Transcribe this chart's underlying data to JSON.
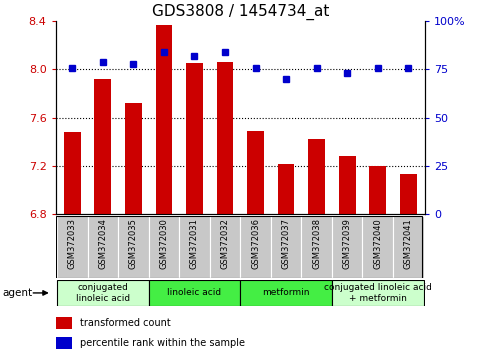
{
  "title": "GDS3808 / 1454734_at",
  "samples": [
    "GSM372033",
    "GSM372034",
    "GSM372035",
    "GSM372030",
    "GSM372031",
    "GSM372032",
    "GSM372036",
    "GSM372037",
    "GSM372038",
    "GSM372039",
    "GSM372040",
    "GSM372041"
  ],
  "transformed_count": [
    7.48,
    7.92,
    7.72,
    8.37,
    8.05,
    8.06,
    7.49,
    7.22,
    7.42,
    7.28,
    7.2,
    7.13
  ],
  "percentile_rank": [
    76,
    79,
    78,
    84,
    82,
    84,
    76,
    70,
    76,
    73,
    76,
    76
  ],
  "ylim_left": [
    6.8,
    8.4
  ],
  "ylim_right": [
    0,
    100
  ],
  "yticks_left": [
    6.8,
    7.2,
    7.6,
    8.0,
    8.4
  ],
  "yticks_right": [
    0,
    25,
    50,
    75,
    100
  ],
  "ytick_labels_right": [
    "0",
    "25",
    "50",
    "75",
    "100%"
  ],
  "hlines": [
    8.0,
    7.6,
    7.2
  ],
  "bar_color": "#cc0000",
  "dot_color": "#0000cc",
  "bar_bottom": 6.8,
  "agent_groups": [
    {
      "label": "conjugated\nlinoleic acid",
      "start": 0,
      "end": 3,
      "color": "#ccffcc"
    },
    {
      "label": "linoleic acid",
      "start": 3,
      "end": 6,
      "color": "#44ee44"
    },
    {
      "label": "metformin",
      "start": 6,
      "end": 9,
      "color": "#44ee44"
    },
    {
      "label": "conjugated linoleic acid\n+ metformin",
      "start": 9,
      "end": 12,
      "color": "#ccffcc"
    }
  ],
  "title_fontsize": 11,
  "tick_label_color_left": "#cc0000",
  "tick_label_color_right": "#0000cc",
  "sample_bg_color": "#c8c8c8",
  "plot_bg_color": "#ffffff",
  "legend_red_label": "transformed count",
  "legend_blue_label": "percentile rank within the sample",
  "agent_label": "agent"
}
